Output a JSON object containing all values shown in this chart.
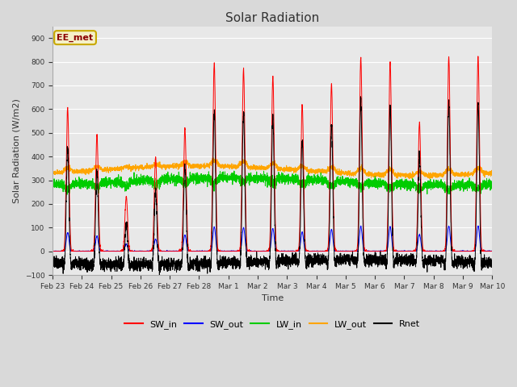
{
  "title": "Solar Radiation",
  "xlabel": "Time",
  "ylabel": "Solar Radiation (W/m2)",
  "ylim": [
    -100,
    950
  ],
  "yticks": [
    -100,
    0,
    100,
    200,
    300,
    400,
    500,
    600,
    700,
    800,
    900
  ],
  "annotation_text": "EE_met",
  "annotation_color": "#8B0000",
  "annotation_bg": "#f5f0c8",
  "annotation_border": "#c8a800",
  "series_colors": {
    "SW_in": "#ff0000",
    "SW_out": "#0000ff",
    "LW_in": "#00cc00",
    "LW_out": "#ffa500",
    "Rnet": "#000000"
  },
  "bg_color": "#d9d9d9",
  "plot_bg_color": "#e8e8e8",
  "grid_color": "#ffffff",
  "seed": 42,
  "sw_in_peaks": [
    605,
    490,
    230,
    395,
    520,
    795,
    770,
    735,
    620,
    705,
    815,
    800,
    545,
    820,
    820
  ],
  "date_labels": [
    "Feb 23",
    "Feb 24",
    "Feb 25",
    "Feb 26",
    "Feb 27",
    "Feb 28",
    "Mar 1",
    "Mar 2",
    "Mar 3",
    "Mar 4",
    "Mar 5",
    "Mar 6",
    "Mar 7",
    "Mar 8",
    "Mar 9",
    "Mar 10"
  ]
}
